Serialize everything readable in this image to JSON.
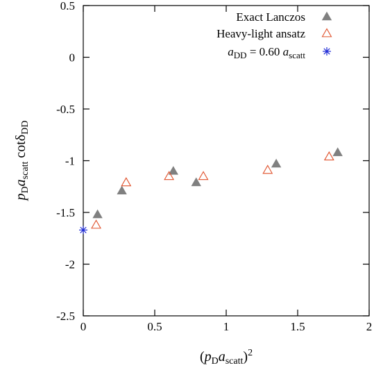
{
  "chart_data": {
    "type": "scatter",
    "xlabel": "(p_D a_scatt)^2",
    "ylabel": "p_D a_scatt cotδ_DD",
    "xlim": [
      0,
      2
    ],
    "ylim": [
      -2.5,
      0.5
    ],
    "x_ticks": [
      "0",
      "0.5",
      "1",
      "1.5",
      "2"
    ],
    "y_ticks": [
      "0.5",
      "0",
      "-0.5",
      "-1",
      "-1.5",
      "-2",
      "-2.5"
    ],
    "legend_position": "top-right",
    "grid": false,
    "series": [
      {
        "name": "Exact Lanczos",
        "marker": "filled-triangle",
        "color": "#808080",
        "points": [
          {
            "x": 0.1,
            "y": -1.52
          },
          {
            "x": 0.27,
            "y": -1.29
          },
          {
            "x": 0.63,
            "y": -1.1
          },
          {
            "x": 0.79,
            "y": -1.21
          },
          {
            "x": 1.35,
            "y": -1.03
          },
          {
            "x": 1.78,
            "y": -0.92
          }
        ]
      },
      {
        "name": "Heavy-light ansatz",
        "marker": "open-triangle",
        "color": "#e0502a",
        "points": [
          {
            "x": 0.09,
            "y": -1.62
          },
          {
            "x": 0.3,
            "y": -1.21
          },
          {
            "x": 0.6,
            "y": -1.15
          },
          {
            "x": 0.84,
            "y": -1.15
          },
          {
            "x": 1.29,
            "y": -1.09
          },
          {
            "x": 1.72,
            "y": -0.96
          }
        ]
      },
      {
        "name": "a_DD = 0.60 a_scatt",
        "marker": "asterisk",
        "color": "#1f2bd6",
        "points": [
          {
            "x": 0.0,
            "y": -1.67
          }
        ]
      }
    ]
  }
}
